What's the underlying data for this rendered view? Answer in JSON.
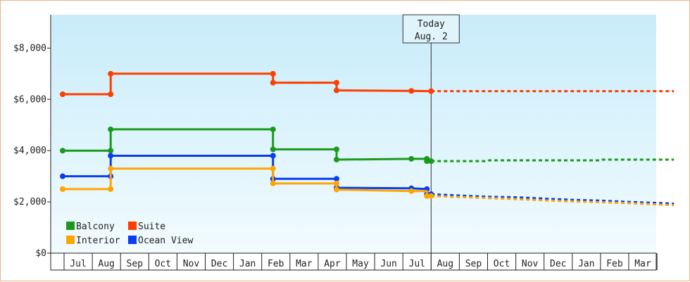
{
  "chart_data": {
    "type": "line",
    "title": "",
    "xlabel": "",
    "ylabel": "",
    "y_ticks": [
      "$0",
      "$2,000",
      "$4,000",
      "$6,000",
      "$8,000"
    ],
    "ylim": [
      0,
      9300
    ],
    "month_labels": [
      "Jul",
      "Aug",
      "Sep",
      "Oct",
      "Nov",
      "Dec",
      "Jan",
      "Feb",
      "Mar",
      "Apr",
      "May",
      "Jun",
      "Jul",
      "Aug",
      "Sep",
      "Oct",
      "Nov",
      "Dec",
      "Jan",
      "Feb",
      "Mar"
    ],
    "today_marker": {
      "line1": "Today",
      "line2": "Aug. 2",
      "month": 13.0
    },
    "legend": [
      {
        "name": "Balcony",
        "color": "#1a9a1a"
      },
      {
        "name": "Suite",
        "color": "#ff3d00"
      },
      {
        "name": "Interior",
        "color": "#ffa500"
      },
      {
        "name": "Ocean View",
        "color": "#0a3cf0"
      }
    ],
    "series": [
      {
        "name": "Suite",
        "color": "#ff3d00",
        "history": [
          [
            -0.05,
            6200
          ],
          [
            1.65,
            6200
          ],
          [
            1.65,
            7000
          ],
          [
            7.4,
            7000
          ],
          [
            7.4,
            6650
          ],
          [
            9.65,
            6650
          ],
          [
            9.65,
            6350
          ],
          [
            12.3,
            6330
          ],
          [
            13.0,
            6320
          ]
        ],
        "points": [
          [
            -0.05,
            6200
          ],
          [
            1.65,
            6200
          ],
          [
            1.65,
            7000
          ],
          [
            7.4,
            7000
          ],
          [
            7.4,
            6650
          ],
          [
            9.65,
            6650
          ],
          [
            9.65,
            6350
          ],
          [
            12.3,
            6330
          ],
          [
            13.0,
            6320
          ]
        ],
        "forecast": [
          [
            13.0,
            6320
          ],
          [
            21.6,
            6320
          ]
        ]
      },
      {
        "name": "Balcony",
        "color": "#1a9a1a",
        "history": [
          [
            -0.05,
            4000
          ],
          [
            1.65,
            4000
          ],
          [
            1.65,
            4830
          ],
          [
            7.4,
            4830
          ],
          [
            7.4,
            4050
          ],
          [
            9.65,
            4050
          ],
          [
            9.65,
            3650
          ],
          [
            12.3,
            3680
          ],
          [
            12.85,
            3680
          ],
          [
            12.85,
            3590
          ],
          [
            13.0,
            3590
          ]
        ],
        "points": [
          [
            -0.05,
            4000
          ],
          [
            1.65,
            4000
          ],
          [
            1.65,
            4830
          ],
          [
            7.4,
            4830
          ],
          [
            7.4,
            4050
          ],
          [
            9.65,
            4050
          ],
          [
            9.65,
            3650
          ],
          [
            12.3,
            3680
          ],
          [
            12.85,
            3680
          ],
          [
            12.85,
            3590
          ],
          [
            13.0,
            3590
          ]
        ],
        "forecast": [
          [
            13.0,
            3590
          ],
          [
            15.0,
            3590
          ],
          [
            15.05,
            3620
          ],
          [
            19.0,
            3620
          ],
          [
            19.05,
            3650
          ],
          [
            21.6,
            3650
          ]
        ]
      },
      {
        "name": "Ocean View",
        "color": "#0a3cf0",
        "history": [
          [
            -0.05,
            3000
          ],
          [
            1.65,
            3000
          ],
          [
            1.65,
            3800
          ],
          [
            7.4,
            3800
          ],
          [
            7.4,
            2900
          ],
          [
            9.65,
            2900
          ],
          [
            9.65,
            2550
          ],
          [
            12.3,
            2530
          ],
          [
            12.85,
            2500
          ],
          [
            12.85,
            2300
          ],
          [
            13.0,
            2300
          ]
        ],
        "points": [
          [
            -0.05,
            3000
          ],
          [
            1.65,
            3000
          ],
          [
            1.65,
            3800
          ],
          [
            7.4,
            3800
          ],
          [
            7.4,
            2900
          ],
          [
            9.65,
            2900
          ],
          [
            9.65,
            2550
          ],
          [
            12.3,
            2530
          ],
          [
            12.85,
            2500
          ],
          [
            12.85,
            2300
          ],
          [
            13.0,
            2300
          ]
        ],
        "forecast": [
          [
            13.0,
            2300
          ],
          [
            14.0,
            2250
          ],
          [
            15.0,
            2200
          ],
          [
            16.0,
            2180
          ],
          [
            17.0,
            2130
          ],
          [
            18.0,
            2080
          ],
          [
            19.0,
            2050
          ],
          [
            20.0,
            2000
          ],
          [
            21.0,
            1960
          ],
          [
            21.6,
            1930
          ]
        ]
      },
      {
        "name": "Interior",
        "color": "#ffa500",
        "history": [
          [
            -0.05,
            2500
          ],
          [
            1.65,
            2500
          ],
          [
            1.65,
            3300
          ],
          [
            7.4,
            3300
          ],
          [
            7.4,
            2720
          ],
          [
            9.65,
            2720
          ],
          [
            9.65,
            2480
          ],
          [
            12.3,
            2420
          ],
          [
            12.85,
            2420
          ],
          [
            12.85,
            2230
          ],
          [
            13.0,
            2230
          ]
        ],
        "points": [
          [
            -0.05,
            2500
          ],
          [
            1.65,
            2500
          ],
          [
            1.65,
            3300
          ],
          [
            7.4,
            3300
          ],
          [
            7.4,
            2720
          ],
          [
            9.65,
            2720
          ],
          [
            9.65,
            2480
          ],
          [
            12.3,
            2420
          ],
          [
            12.85,
            2230
          ],
          [
            13.0,
            2230
          ]
        ],
        "forecast": [
          [
            13.0,
            2230
          ],
          [
            14.0,
            2190
          ],
          [
            15.0,
            2150
          ],
          [
            16.0,
            2110
          ],
          [
            17.0,
            2060
          ],
          [
            18.0,
            2020
          ],
          [
            19.0,
            1990
          ],
          [
            20.0,
            1950
          ],
          [
            21.0,
            1900
          ],
          [
            21.6,
            1870
          ]
        ]
      }
    ]
  }
}
